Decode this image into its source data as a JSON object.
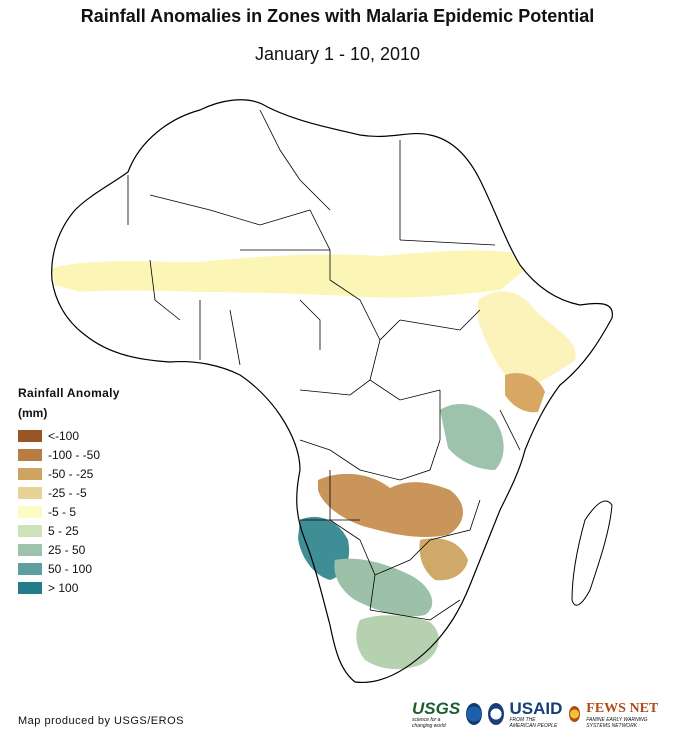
{
  "title": "Rainfall Anomalies in Zones with Malaria Epidemic Potential",
  "subtitle": "January 1 - 10, 2010",
  "legend": {
    "title": "Rainfall Anomaly",
    "unit": "(mm)",
    "items": [
      {
        "label": "<-100",
        "color": "#9a5624"
      },
      {
        "label": "-100 - -50",
        "color": "#b87d42"
      },
      {
        "label": "-50 - -25",
        "color": "#cfa461"
      },
      {
        "label": "-25 - -5",
        "color": "#e9d296"
      },
      {
        "label": "-5 - 5",
        "color": "#fbfbc4"
      },
      {
        "label": "5 - 25",
        "color": "#cde2b8"
      },
      {
        "label": "25 - 50",
        "color": "#9ec3ad"
      },
      {
        "label": "50 - 100",
        "color": "#5f9e9e"
      },
      {
        "label": "> 100",
        "color": "#267b8a"
      }
    ]
  },
  "credit": "Map produced by USGS/EROS",
  "logos": {
    "usgs": "USGS",
    "usgs_tagline": "science for a changing world",
    "usaid": "USAID",
    "usaid_tagline": "FROM THE AMERICAN PEOPLE",
    "fews": "FEWS NET",
    "fews_tagline": "FAMINE EARLY WARNING SYSTEMS NETWORK"
  }
}
